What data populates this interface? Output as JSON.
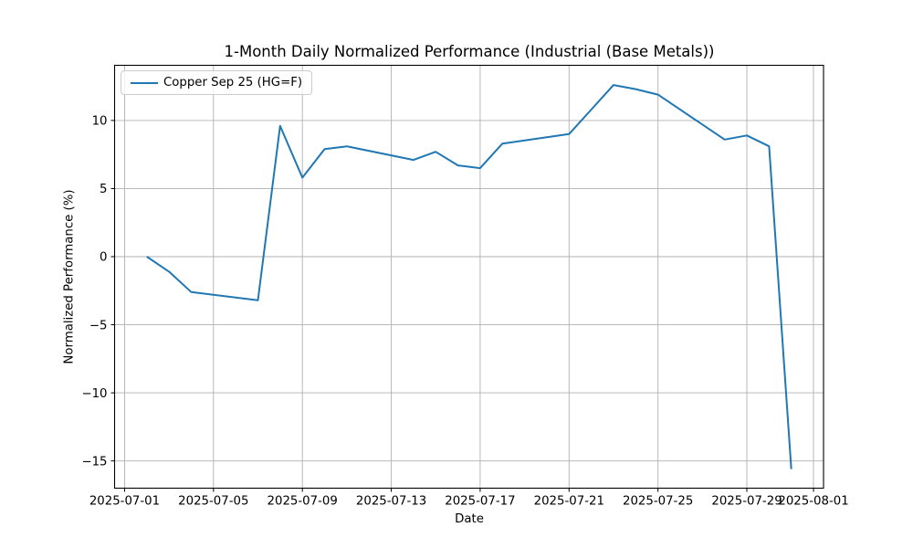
{
  "chart_data": {
    "type": "line",
    "title": "1-Month Daily Normalized Performance (Industrial (Base Metals))",
    "xlabel": "Date",
    "ylabel": "Normalized Performance (%)",
    "legend_position": "upper left",
    "grid": true,
    "x_epoch": "2025-07-01",
    "xlim_days": [
      -0.45,
      31.45
    ],
    "ylim": [
      -17,
      14.05
    ],
    "x_ticks": [
      "2025-07-01",
      "2025-07-05",
      "2025-07-09",
      "2025-07-13",
      "2025-07-17",
      "2025-07-21",
      "2025-07-25",
      "2025-07-29",
      "2025-08-01"
    ],
    "y_ticks": [
      10,
      5,
      0,
      -5,
      -10,
      -15
    ],
    "series": [
      {
        "name": "Copper Sep 25 (HG=F)",
        "color": "#1f77b4",
        "x": [
          "2025-07-02",
          "2025-07-03",
          "2025-07-04",
          "2025-07-07",
          "2025-07-08",
          "2025-07-09",
          "2025-07-10",
          "2025-07-11",
          "2025-07-14",
          "2025-07-15",
          "2025-07-16",
          "2025-07-17",
          "2025-07-18",
          "2025-07-21",
          "2025-07-22",
          "2025-07-23",
          "2025-07-24",
          "2025-07-25",
          "2025-07-28",
          "2025-07-29",
          "2025-07-30",
          "2025-07-31"
        ],
        "values": [
          0.0,
          -1.1,
          -2.6,
          -3.2,
          9.6,
          5.8,
          7.9,
          8.1,
          7.1,
          7.7,
          6.7,
          6.5,
          8.3,
          9.0,
          10.8,
          12.6,
          12.3,
          11.9,
          8.6,
          8.9,
          8.1,
          -15.6
        ]
      }
    ]
  },
  "colors": {
    "line": "#1f77b4",
    "grid": "#b0b0b0",
    "spine": "#000000",
    "text": "#000000",
    "legend_border": "#cccccc",
    "background": "#ffffff"
  }
}
